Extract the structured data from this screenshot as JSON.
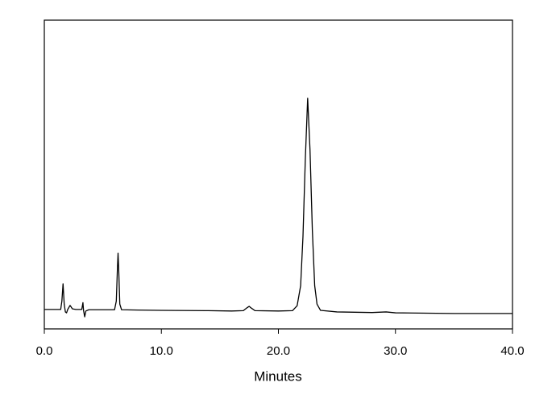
{
  "chart_data": {
    "type": "line",
    "xlabel": "Minutes",
    "color": "#000000",
    "x": [
      0,
      1.0,
      1.4,
      1.5,
      1.6,
      1.7,
      1.8,
      1.9,
      2.0,
      2.2,
      2.4,
      2.7,
      3.2,
      3.3,
      3.35,
      3.45,
      3.55,
      3.8,
      5.0,
      6.0,
      6.15,
      6.25,
      6.3,
      6.35,
      6.45,
      6.6,
      8,
      10,
      14,
      16,
      17,
      17.3,
      17.5,
      17.7,
      18,
      20,
      21.2,
      21.6,
      21.9,
      22.1,
      22.3,
      22.5,
      22.7,
      22.9,
      23.1,
      23.3,
      23.6,
      25,
      28,
      29.2,
      30,
      35,
      40
    ],
    "values": [
      6.3,
      6.3,
      6.3,
      9,
      14.6,
      8,
      5.5,
      5.2,
      6.3,
      7.6,
      6.5,
      6.3,
      6.3,
      8.5,
      6,
      3.9,
      5.8,
      6.2,
      6.2,
      6.2,
      9,
      20,
      24.5,
      20,
      8,
      6.2,
      6.1,
      6.0,
      5.9,
      5.8,
      5.9,
      6.8,
      7.3,
      6.7,
      5.9,
      5.8,
      5.9,
      7.5,
      14,
      30,
      55,
      74.7,
      58,
      32,
      14,
      8,
      6,
      5.5,
      5.3,
      5.5,
      5.2,
      5.0,
      5.0
    ],
    "xlim": [
      0,
      40
    ],
    "xticks": [
      {
        "value": 0,
        "label": "0.0"
      },
      {
        "value": 10,
        "label": "10.0"
      },
      {
        "value": 20,
        "label": "20.0"
      },
      {
        "value": 30,
        "label": "30.0"
      },
      {
        "value": 40,
        "label": "40.0"
      }
    ],
    "ylim": [
      0,
      100
    ]
  }
}
